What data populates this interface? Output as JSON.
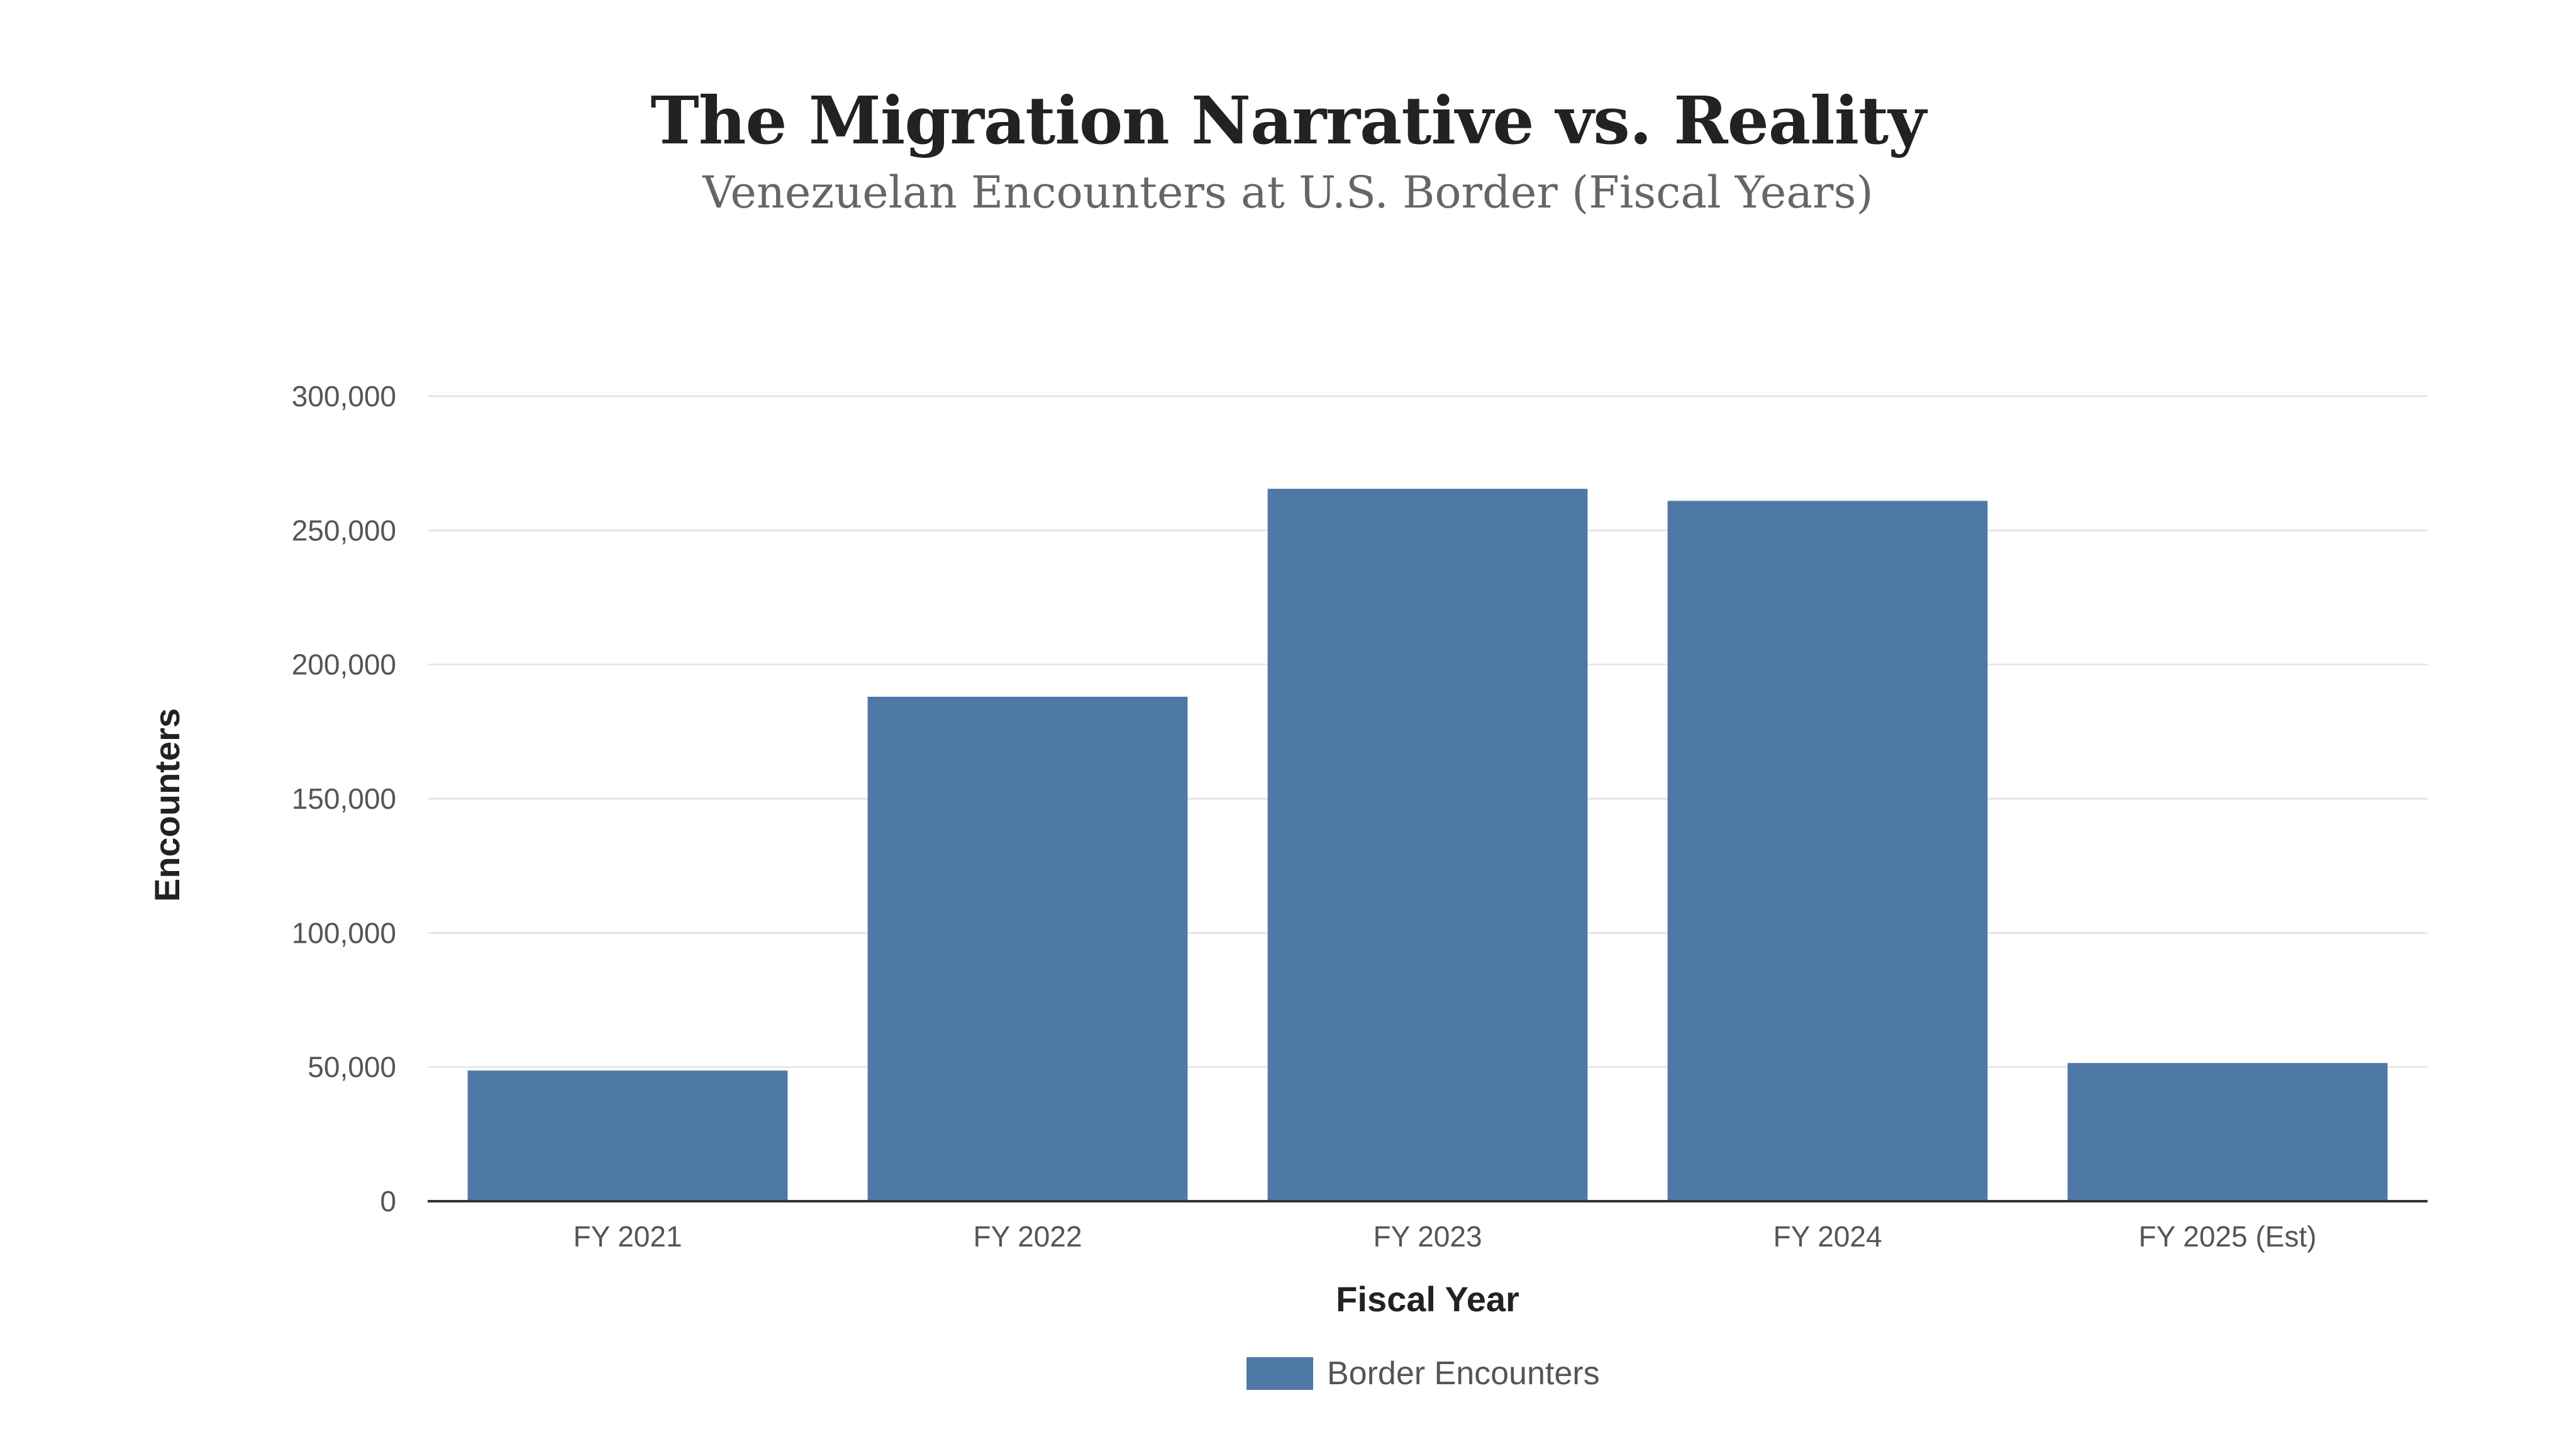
{
  "chart_data": {
    "type": "bar",
    "title": "The Migration Narrative vs. Reality",
    "subtitle": "Venezuelan Encounters at U.S. Border (Fiscal Years)",
    "categories": [
      "FY 2021",
      "FY 2022",
      "FY 2023",
      "FY 2024",
      "FY 2025 (Est)"
    ],
    "series": [
      {
        "name": "Border Encounters",
        "values": [
          48700,
          188000,
          265500,
          261000,
          51500
        ],
        "color": "#4e79a7"
      }
    ],
    "xlabel": "Fiscal Year",
    "ylabel": "Encounters",
    "ylim": [
      0,
      300000
    ],
    "yticks": [
      0,
      50000,
      100000,
      150000,
      200000,
      250000,
      300000
    ],
    "ytick_labels": [
      "0",
      "50,000",
      "100,000",
      "150,000",
      "200,000",
      "250,000",
      "300,000"
    ],
    "grid": true,
    "legend_position": "bottom-center"
  }
}
